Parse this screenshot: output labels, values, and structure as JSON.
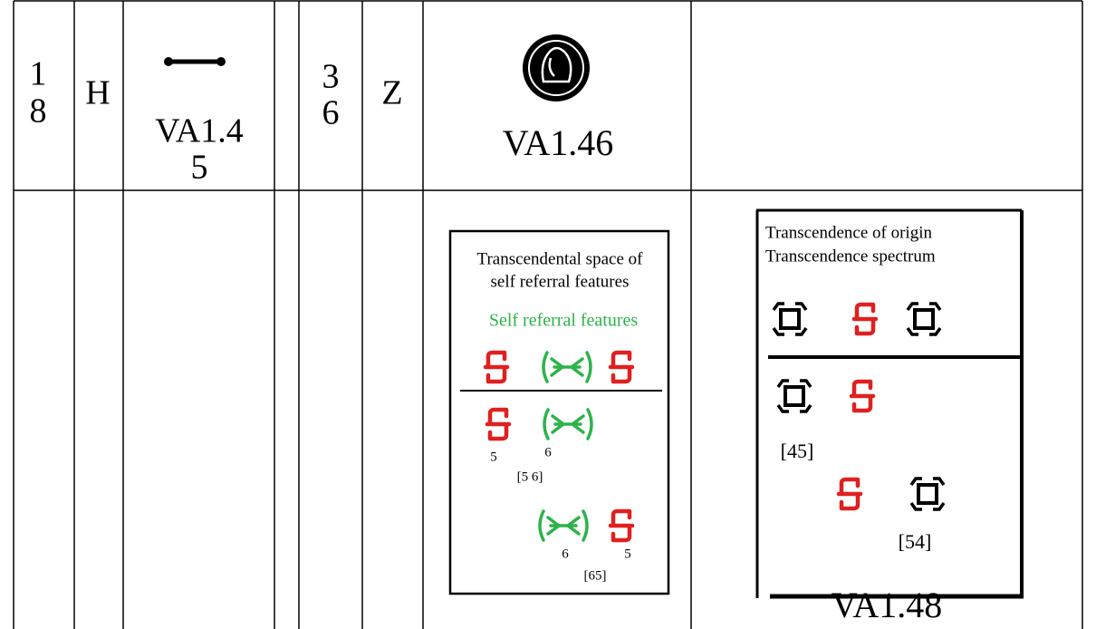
{
  "row1": {
    "col1": [
      "1",
      "8"
    ],
    "col2": "H",
    "col3": [
      "VA1.4",
      "5"
    ],
    "col5": [
      "3",
      "6"
    ],
    "col6": "Z",
    "col7": "VA1.46"
  },
  "figure1": {
    "lines": [
      "Transcendental space of",
      "self referral features"
    ],
    "green_label": "Self referral features",
    "labels": [
      "5",
      "6",
      "[5 6]",
      "6",
      "5",
      "[65]"
    ]
  },
  "figure2": {
    "lines": [
      "Transcendence of origin",
      "Transcendence spectrum"
    ],
    "labels": [
      "[45]",
      "[54]"
    ]
  },
  "caption": "VA1.48"
}
